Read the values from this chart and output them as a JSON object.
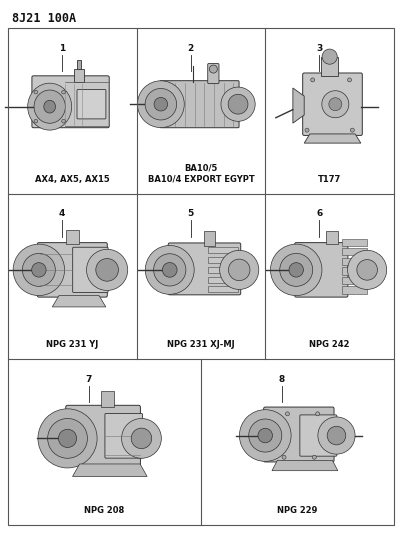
{
  "title": "8J21 100A",
  "bg_color": "#f5f5f0",
  "grid_color": "#555555",
  "text_color": "#111111",
  "cells": [
    {
      "row": 0,
      "col": 0,
      "col_span": 1,
      "part_num": "1",
      "label": "AX4, AX5, AX15",
      "label2": ""
    },
    {
      "row": 0,
      "col": 1,
      "col_span": 1,
      "part_num": "2",
      "label": "BA10/5",
      "label2": "BA10/4 EXPORT EGYPT"
    },
    {
      "row": 0,
      "col": 2,
      "col_span": 1,
      "part_num": "3",
      "label": "T177",
      "label2": ""
    },
    {
      "row": 1,
      "col": 0,
      "col_span": 1,
      "part_num": "4",
      "label": "NPG 231 YJ",
      "label2": ""
    },
    {
      "row": 1,
      "col": 1,
      "col_span": 1,
      "part_num": "5",
      "label": "NPG 231 XJ-MJ",
      "label2": ""
    },
    {
      "row": 1,
      "col": 2,
      "col_span": 1,
      "part_num": "6",
      "label": "NPG 242",
      "label2": ""
    },
    {
      "row": 2,
      "col": 0,
      "col_span": 1,
      "part_num": "7",
      "label": "NPG 208",
      "label2": ""
    },
    {
      "row": 2,
      "col": 1,
      "col_span": 1,
      "part_num": "8",
      "label": "NPG 229",
      "label2": ""
    }
  ],
  "num_rows": 3,
  "num_cols": 3,
  "figsize": [
    4.02,
    5.33
  ],
  "dpi": 100
}
